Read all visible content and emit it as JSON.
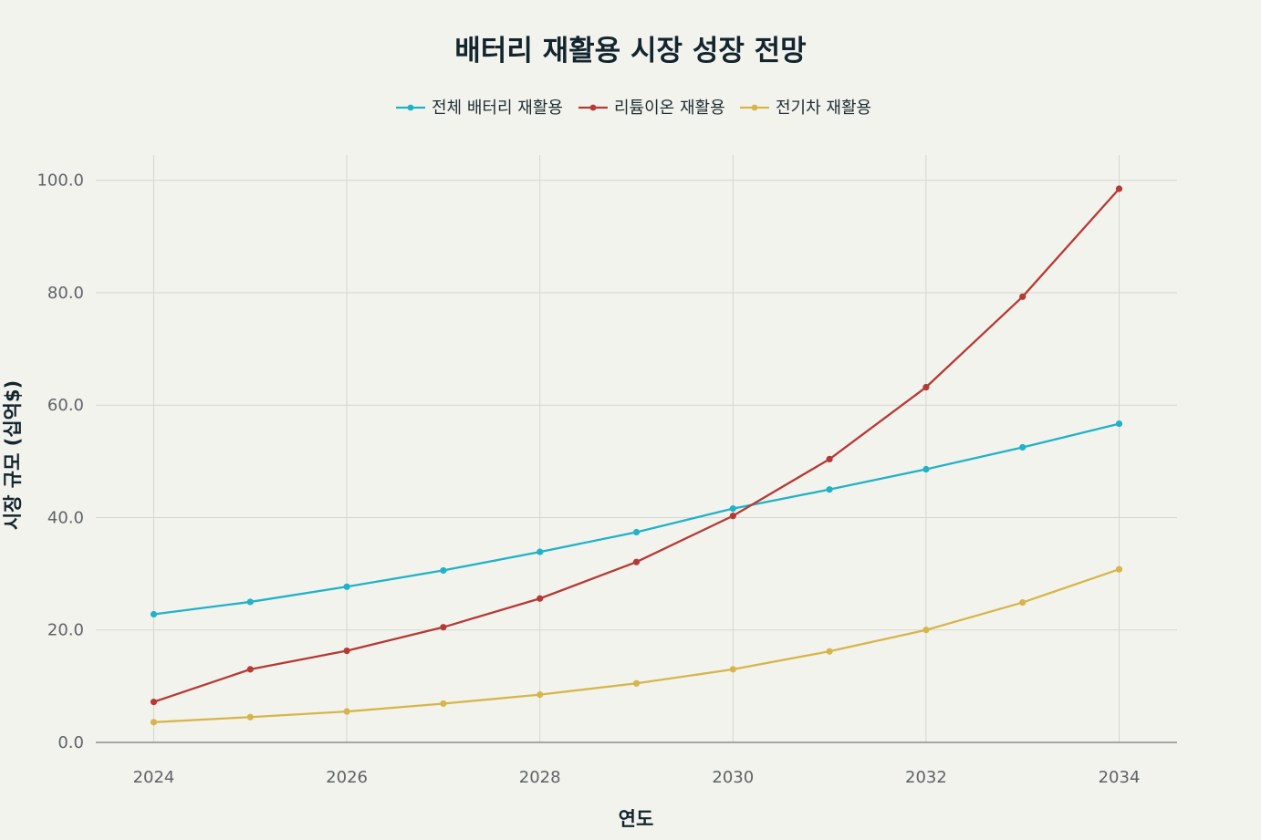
{
  "chart_data": {
    "type": "line",
    "title": "배터리 재활용 시장 성장 전망",
    "xlabel": "연도",
    "ylabel": "시장 규모 (십억$)",
    "x": [
      2024,
      2025,
      2026,
      2027,
      2028,
      2029,
      2030,
      2031,
      2032,
      2033,
      2034
    ],
    "xticks": [
      "2024",
      "2026",
      "2028",
      "2030",
      "2032",
      "2034"
    ],
    "yticks": [
      "0.0",
      "20.0",
      "40.0",
      "60.0",
      "80.0",
      "100.0"
    ],
    "xlim": [
      2023.4,
      2034.6
    ],
    "ylim": [
      0,
      104.5
    ],
    "grid": true,
    "legend_position": "top-center",
    "series": [
      {
        "name": "전체 배터리 재활용",
        "color": "#20b2c8",
        "values": [
          22.8,
          25.0,
          27.7,
          30.6,
          33.9,
          37.4,
          41.6,
          45.0,
          48.6,
          52.5,
          56.7
        ]
      },
      {
        "name": "리튬이온 재활용",
        "color": "#b53a35",
        "values": [
          7.2,
          13.0,
          16.3,
          20.5,
          25.6,
          32.1,
          40.3,
          50.4,
          63.2,
          79.3,
          98.5
        ]
      },
      {
        "name": "전기차 재활용",
        "color": "#d6b64a",
        "values": [
          3.6,
          4.5,
          5.5,
          6.9,
          8.5,
          10.5,
          13.0,
          16.2,
          20.0,
          24.9,
          30.8
        ]
      }
    ]
  }
}
